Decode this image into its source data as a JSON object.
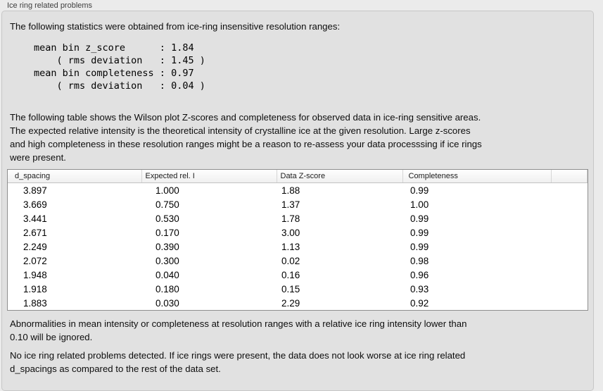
{
  "panel": {
    "title": "Ice ring related problems"
  },
  "content": {
    "intro": "The following statistics were obtained from ice-ring insensitive resolution ranges:",
    "stats_block": "mean bin z_score      : 1.84\n    ( rms deviation   : 1.45 )\nmean bin completeness : 0.97\n    ( rms deviation   : 0.04 )",
    "table_description": "The following table shows the Wilson plot Z-scores and completeness for observed data in ice-ring sensitive areas.\nThe expected relative intensity is the theoretical intensity of crystalline ice at the given resolution. Large z-scores\nand high completeness in these resolution ranges might be a reason to re-assess your data processsing if ice rings\nwere present.",
    "ignore_note": "Abnormalities in mean intensity or completeness at resolution ranges with a relative ice ring intensity lower than\n0.10 will be ignored.",
    "conclusion": "No ice ring related problems detected. If ice rings were present, the data does not look worse at ice ring related\nd_spacings as compared to the rest of the data set."
  },
  "table": {
    "headers": [
      "d_spacing",
      "Expected rel. I",
      "Data Z-score",
      "Completeness"
    ],
    "rows": [
      [
        "3.897",
        "1.000",
        "1.88",
        "0.99"
      ],
      [
        "3.669",
        "0.750",
        "1.37",
        "1.00"
      ],
      [
        "3.441",
        "0.530",
        "1.78",
        "0.99"
      ],
      [
        "2.671",
        "0.170",
        "3.00",
        "0.99"
      ],
      [
        "2.249",
        "0.390",
        "1.13",
        "0.99"
      ],
      [
        "2.072",
        "0.300",
        "0.02",
        "0.98"
      ],
      [
        "1.948",
        "0.040",
        "0.16",
        "0.96"
      ],
      [
        "1.918",
        "0.180",
        "0.15",
        "0.93"
      ],
      [
        "1.883",
        "0.030",
        "2.29",
        "0.92"
      ]
    ]
  },
  "colors": {
    "window_bg": "#ebebeb",
    "panel_bg": "#e1e1e1",
    "table_border": "#8e8e8e",
    "header_bg": "#f5f5f5"
  }
}
